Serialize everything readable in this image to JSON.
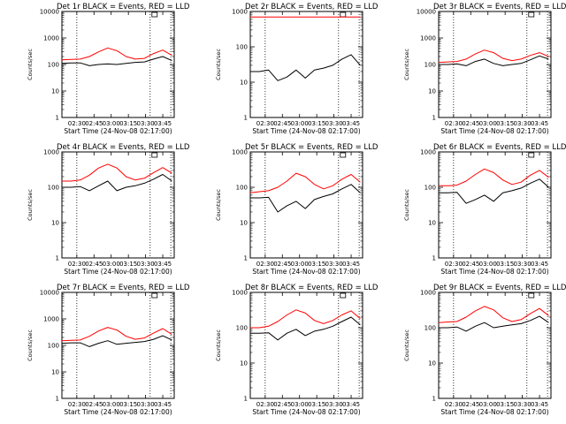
{
  "figure": {
    "background": "#ffffff",
    "events_color": "#000000",
    "lld_color": "#ff0000"
  },
  "chart_data": [
    {
      "type": "line",
      "detector": "Det 1r",
      "title": "Det 1r BLACK = Events, RED = LLD",
      "xlabel": "Start Time (24-Nov-08 02:17:00)",
      "ylabel": "Counts/sec",
      "xlim": [
        "02:17",
        "03:55"
      ],
      "ylim": [
        1,
        10000
      ],
      "yscale": "log",
      "x_ticks": [
        "02:30",
        "02:45",
        "03:00",
        "03:15",
        "03:30",
        "03:45"
      ],
      "y_ticks": [
        "1",
        "10",
        "100",
        "1000",
        "10000"
      ],
      "vertical_markers": [
        "02:30",
        "03:34",
        "03:52"
      ],
      "x": [
        "02:17",
        "02:25",
        "02:33",
        "02:41",
        "02:49",
        "02:57",
        "03:05",
        "03:13",
        "03:21",
        "03:29",
        "03:37",
        "03:45",
        "03:53"
      ],
      "series": [
        {
          "name": "BLACK = Events",
          "color": "#000000",
          "values": [
            110,
            115,
            115,
            90,
            100,
            105,
            100,
            110,
            120,
            125,
            160,
            200,
            140
          ]
        },
        {
          "name": "RED = LLD",
          "color": "#ff0000",
          "values": [
            150,
            155,
            160,
            200,
            300,
            420,
            330,
            200,
            160,
            170,
            260,
            350,
            220
          ]
        }
      ]
    },
    {
      "type": "line",
      "detector": "Det 2r",
      "title": "Det 2r BLACK = Events, RED = LLD",
      "xlabel": "Start Time (24-Nov-08 02:17:00)",
      "ylabel": "Counts/sec",
      "xlim": [
        "02:17",
        "03:55"
      ],
      "ylim": [
        1,
        1000
      ],
      "yscale": "log",
      "x_ticks": [
        "02:30",
        "02:45",
        "03:00",
        "03:15",
        "03:30",
        "03:45"
      ],
      "y_ticks": [
        "1",
        "10",
        "100",
        "1000"
      ],
      "vertical_markers": [
        "02:30",
        "03:34",
        "03:52"
      ],
      "x": [
        "02:17",
        "02:25",
        "02:33",
        "02:41",
        "02:49",
        "02:57",
        "03:05",
        "03:13",
        "03:21",
        "03:29",
        "03:37",
        "03:45",
        "03:53"
      ],
      "series": [
        {
          "name": "BLACK = Events",
          "color": "#000000",
          "values": [
            20,
            20,
            22,
            11,
            14,
            22,
            13,
            22,
            25,
            30,
            45,
            60,
            30
          ]
        },
        {
          "name": "RED = LLD",
          "color": "#ff0000",
          "values": [
            700,
            700,
            700,
            700,
            700,
            700,
            700,
            700,
            700,
            700,
            700,
            700,
            700
          ]
        }
      ]
    },
    {
      "type": "line",
      "detector": "Det 3r",
      "title": "Det 3r BLACK = Events, RED = LLD",
      "xlabel": "Start Time (24-Nov-08 02:17:00)",
      "ylabel": "Counts/sec",
      "xlim": [
        "02:17",
        "03:55"
      ],
      "ylim": [
        1,
        10000
      ],
      "yscale": "log",
      "x_ticks": [
        "02:30",
        "02:45",
        "03:00",
        "03:15",
        "03:30",
        "03:45"
      ],
      "y_ticks": [
        "1",
        "10",
        "100",
        "1000",
        "10000"
      ],
      "vertical_markers": [
        "02:30",
        "03:34",
        "03:52"
      ],
      "x": [
        "02:17",
        "02:25",
        "02:33",
        "02:41",
        "02:49",
        "02:57",
        "03:05",
        "03:13",
        "03:21",
        "03:29",
        "03:37",
        "03:45",
        "03:53"
      ],
      "series": [
        {
          "name": "BLACK = Events",
          "color": "#000000",
          "values": [
            100,
            100,
            105,
            90,
            130,
            160,
            110,
            90,
            100,
            110,
            150,
            210,
            160
          ]
        },
        {
          "name": "RED = LLD",
          "color": "#ff0000",
          "values": [
            120,
            125,
            130,
            160,
            250,
            350,
            280,
            170,
            140,
            160,
            220,
            280,
            200
          ]
        }
      ]
    },
    {
      "type": "line",
      "detector": "Det 4r",
      "title": "Det 4r BLACK = Events, RED = LLD",
      "xlabel": "Start Time (24-Nov-08 02:17:00)",
      "ylabel": "Counts/sec",
      "xlim": [
        "02:17",
        "03:55"
      ],
      "ylim": [
        1,
        1000
      ],
      "yscale": "log",
      "x_ticks": [
        "02:30",
        "02:45",
        "03:00",
        "03:15",
        "03:30",
        "03:45"
      ],
      "y_ticks": [
        "1",
        "10",
        "100",
        "1000"
      ],
      "vertical_markers": [
        "02:30",
        "03:34",
        "03:52"
      ],
      "x": [
        "02:17",
        "02:25",
        "02:33",
        "02:41",
        "02:49",
        "02:57",
        "03:05",
        "03:13",
        "03:21",
        "03:29",
        "03:37",
        "03:45",
        "03:53"
      ],
      "series": [
        {
          "name": "BLACK = Events",
          "color": "#000000",
          "values": [
            100,
            100,
            105,
            80,
            110,
            150,
            80,
            100,
            110,
            130,
            170,
            230,
            150
          ]
        },
        {
          "name": "RED = LLD",
          "color": "#ff0000",
          "values": [
            150,
            150,
            160,
            220,
            350,
            450,
            350,
            200,
            160,
            180,
            260,
            360,
            250
          ]
        }
      ]
    },
    {
      "type": "line",
      "detector": "Det 5r",
      "title": "Det 5r BLACK = Events, RED = LLD",
      "xlabel": "Start Time (24-Nov-08 02:17:00)",
      "ylabel": "Counts/sec",
      "xlim": [
        "02:17",
        "03:55"
      ],
      "ylim": [
        1,
        1000
      ],
      "yscale": "log",
      "x_ticks": [
        "02:30",
        "02:45",
        "03:00",
        "03:15",
        "03:30",
        "03:45"
      ],
      "y_ticks": [
        "1",
        "10",
        "100",
        "1000"
      ],
      "vertical_markers": [
        "02:30",
        "03:34",
        "03:52"
      ],
      "x": [
        "02:17",
        "02:25",
        "02:33",
        "02:41",
        "02:49",
        "02:57",
        "03:05",
        "03:13",
        "03:21",
        "03:29",
        "03:37",
        "03:45",
        "03:53"
      ],
      "series": [
        {
          "name": "BLACK = Events",
          "color": "#000000",
          "values": [
            50,
            50,
            52,
            20,
            30,
            40,
            25,
            45,
            55,
            65,
            90,
            120,
            70
          ]
        },
        {
          "name": "RED = LLD",
          "color": "#ff0000",
          "values": [
            70,
            75,
            80,
            100,
            150,
            250,
            200,
            120,
            90,
            110,
            170,
            230,
            140
          ]
        }
      ]
    },
    {
      "type": "line",
      "detector": "Det 6r",
      "title": "Det 6r BLACK = Events, RED = LLD",
      "xlabel": "Start Time (24-Nov-08 02:17:00)",
      "ylabel": "Counts/sec",
      "xlim": [
        "02:17",
        "03:55"
      ],
      "ylim": [
        1,
        1000
      ],
      "yscale": "log",
      "x_ticks": [
        "02:30",
        "02:45",
        "03:00",
        "03:15",
        "03:30",
        "03:45"
      ],
      "y_ticks": [
        "1",
        "10",
        "100",
        "1000"
      ],
      "vertical_markers": [
        "02:30",
        "03:34",
        "03:52"
      ],
      "x": [
        "02:17",
        "02:25",
        "02:33",
        "02:41",
        "02:49",
        "02:57",
        "03:05",
        "03:13",
        "03:21",
        "03:29",
        "03:37",
        "03:45",
        "03:53"
      ],
      "series": [
        {
          "name": "BLACK = Events",
          "color": "#000000",
          "values": [
            70,
            70,
            72,
            35,
            45,
            60,
            40,
            70,
            80,
            95,
            130,
            170,
            100
          ]
        },
        {
          "name": "RED = LLD",
          "color": "#ff0000",
          "values": [
            110,
            110,
            115,
            150,
            230,
            330,
            260,
            160,
            120,
            140,
            220,
            300,
            190
          ]
        }
      ]
    },
    {
      "type": "line",
      "detector": "Det 7r",
      "title": "Det 7r BLACK = Events, RED = LLD",
      "xlabel": "Start Time (24-Nov-08 02:17:00)",
      "ylabel": "Counts/sec",
      "xlim": [
        "02:17",
        "03:55"
      ],
      "ylim": [
        1,
        10000
      ],
      "yscale": "log",
      "x_ticks": [
        "02:30",
        "02:45",
        "03:00",
        "03:15",
        "03:30",
        "03:45"
      ],
      "y_ticks": [
        "1",
        "10",
        "100",
        "1000",
        "10000"
      ],
      "vertical_markers": [
        "02:30",
        "03:34",
        "03:52"
      ],
      "x": [
        "02:17",
        "02:25",
        "02:33",
        "02:41",
        "02:49",
        "02:57",
        "03:05",
        "03:13",
        "03:21",
        "03:29",
        "03:37",
        "03:45",
        "03:53"
      ],
      "series": [
        {
          "name": "BLACK = Events",
          "color": "#000000",
          "values": [
            120,
            125,
            125,
            90,
            120,
            150,
            110,
            120,
            130,
            140,
            170,
            230,
            160
          ]
        },
        {
          "name": "RED = LLD",
          "color": "#ff0000",
          "values": [
            150,
            155,
            160,
            220,
            350,
            480,
            380,
            220,
            170,
            190,
            290,
            430,
            260
          ]
        }
      ]
    },
    {
      "type": "line",
      "detector": "Det 8r",
      "title": "Det 8r BLACK = Events, RED = LLD",
      "xlabel": "Start Time (24-Nov-08 02:17:00)",
      "ylabel": "Counts/sec",
      "xlim": [
        "02:17",
        "03:55"
      ],
      "ylim": [
        1,
        1000
      ],
      "yscale": "log",
      "x_ticks": [
        "02:30",
        "02:45",
        "03:00",
        "03:15",
        "03:30",
        "03:45"
      ],
      "y_ticks": [
        "1",
        "10",
        "100",
        "1000"
      ],
      "vertical_markers": [
        "02:30",
        "03:34",
        "03:52"
      ],
      "x": [
        "02:17",
        "02:25",
        "02:33",
        "02:41",
        "02:49",
        "02:57",
        "03:05",
        "03:13",
        "03:21",
        "03:29",
        "03:37",
        "03:45",
        "03:53"
      ],
      "series": [
        {
          "name": "BLACK = Events",
          "color": "#000000",
          "values": [
            70,
            70,
            72,
            45,
            70,
            90,
            60,
            80,
            90,
            110,
            150,
            200,
            120
          ]
        },
        {
          "name": "RED = LLD",
          "color": "#ff0000",
          "values": [
            100,
            100,
            110,
            150,
            230,
            320,
            260,
            160,
            130,
            160,
            230,
            300,
            180
          ]
        }
      ]
    },
    {
      "type": "line",
      "detector": "Det 9r",
      "title": "Det 9r BLACK = Events, RED = LLD",
      "xlabel": "Start Time (24-Nov-08 02:17:00)",
      "ylabel": "Counts/sec",
      "xlim": [
        "02:17",
        "03:55"
      ],
      "ylim": [
        1,
        1000
      ],
      "yscale": "log",
      "x_ticks": [
        "02:30",
        "02:45",
        "03:00",
        "03:15",
        "03:30",
        "03:45"
      ],
      "y_ticks": [
        "1",
        "10",
        "100",
        "1000"
      ],
      "vertical_markers": [
        "02:30",
        "03:34",
        "03:52"
      ],
      "x": [
        "02:17",
        "02:25",
        "02:33",
        "02:41",
        "02:49",
        "02:57",
        "03:05",
        "03:13",
        "03:21",
        "03:29",
        "03:37",
        "03:45",
        "03:53"
      ],
      "series": [
        {
          "name": "BLACK = Events",
          "color": "#000000",
          "values": [
            100,
            100,
            105,
            80,
            110,
            140,
            100,
            110,
            120,
            130,
            160,
            210,
            140
          ]
        },
        {
          "name": "RED = LLD",
          "color": "#ff0000",
          "values": [
            140,
            145,
            150,
            200,
            300,
            400,
            320,
            190,
            150,
            170,
            250,
            350,
            220
          ]
        }
      ]
    }
  ]
}
